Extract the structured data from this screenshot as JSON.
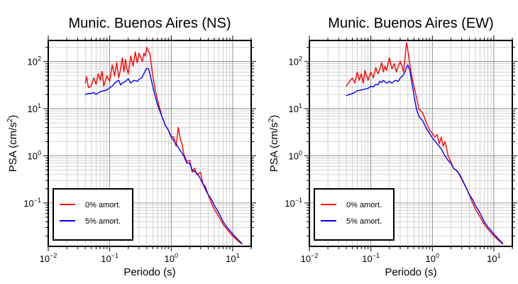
{
  "chart_data": [
    {
      "type": "line",
      "title": "Munic. Buenos Aires (NS)",
      "xlabel": "Periodo (s)",
      "ylabel_main": "PSA (cm/s",
      "ylabel_sup": "2",
      "ylabel_tail": ")",
      "x_scale": "log",
      "y_scale": "log",
      "xlim": [
        0.01,
        20
      ],
      "ylim": [
        0.012,
        280
      ],
      "grid": true,
      "legend_position": "bottom-left",
      "x_ticks": [
        {
          "label_base": "10",
          "label_exp": "−2"
        },
        {
          "label_base": "10",
          "label_exp": "−1"
        },
        {
          "label_base": "10",
          "label_exp": "0"
        },
        {
          "label_base": "10",
          "label_exp": "1"
        }
      ],
      "y_ticks": [
        {
          "label_base": "10",
          "label_exp": "−1"
        },
        {
          "label_base": "10",
          "label_exp": "0"
        },
        {
          "label_base": "10",
          "label_exp": "1"
        },
        {
          "label_base": "10",
          "label_exp": "2"
        }
      ],
      "series": [
        {
          "name": "0% amort.",
          "color": "#ff0000",
          "x": [
            0.04,
            0.042,
            0.045,
            0.05,
            0.055,
            0.06,
            0.065,
            0.07,
            0.075,
            0.08,
            0.09,
            0.1,
            0.11,
            0.12,
            0.13,
            0.14,
            0.15,
            0.16,
            0.17,
            0.18,
            0.19,
            0.2,
            0.22,
            0.24,
            0.26,
            0.28,
            0.3,
            0.32,
            0.34,
            0.36,
            0.38,
            0.4,
            0.42,
            0.45,
            0.5,
            0.55,
            0.6,
            0.7,
            0.8,
            0.9,
            1.0,
            1.1,
            1.2,
            1.3,
            1.4,
            1.5,
            1.6,
            1.7,
            1.8,
            2.0,
            2.2,
            2.4,
            2.6,
            2.8,
            3.0,
            3.3,
            3.6,
            4.0,
            4.5,
            5.0,
            6.0,
            7.0,
            8.0,
            10.0,
            12.0,
            14.0
          ],
          "y": [
            35,
            48,
            28,
            30,
            45,
            33,
            55,
            40,
            62,
            30,
            50,
            38,
            85,
            50,
            95,
            45,
            70,
            120,
            60,
            110,
            70,
            55,
            130,
            80,
            160,
            95,
            150,
            120,
            100,
            150,
            130,
            200,
            170,
            150,
            50,
            25,
            15,
            7,
            4.5,
            3.5,
            2.6,
            2.5,
            1.6,
            4,
            2.3,
            1.8,
            1.1,
            0.9,
            0.75,
            0.8,
            0.45,
            0.55,
            0.4,
            0.42,
            0.45,
            0.25,
            0.22,
            0.15,
            0.1,
            0.075,
            0.05,
            0.035,
            0.028,
            0.02,
            0.016,
            0.0135
          ]
        },
        {
          "name": "5% amort.",
          "color": "#0000ff",
          "x": [
            0.04,
            0.045,
            0.05,
            0.055,
            0.06,
            0.07,
            0.08,
            0.09,
            0.1,
            0.11,
            0.12,
            0.13,
            0.14,
            0.15,
            0.16,
            0.18,
            0.2,
            0.22,
            0.25,
            0.28,
            0.3,
            0.33,
            0.36,
            0.38,
            0.4,
            0.43,
            0.45,
            0.5,
            0.55,
            0.6,
            0.7,
            0.8,
            0.9,
            1.0,
            1.2,
            1.4,
            1.6,
            1.8,
            2.0,
            2.2,
            2.5,
            2.8,
            3.0,
            3.5,
            4.0,
            4.5,
            5.0,
            6.0,
            7.0,
            8.0,
            10.0,
            12.0,
            14.0
          ],
          "y": [
            20,
            21,
            21,
            22,
            20,
            23,
            24,
            25,
            28,
            30,
            35,
            38,
            40,
            32,
            35,
            38,
            43,
            35,
            40,
            38,
            42,
            45,
            55,
            65,
            72,
            70,
            55,
            30,
            18,
            12,
            7,
            4.5,
            3.5,
            2.5,
            1.8,
            1.3,
            1.0,
            0.7,
            0.7,
            0.5,
            0.45,
            0.38,
            0.32,
            0.21,
            0.15,
            0.12,
            0.09,
            0.06,
            0.04,
            0.031,
            0.022,
            0.017,
            0.014
          ]
        }
      ]
    },
    {
      "type": "line",
      "title": "Munic. Buenos Aires (EW)",
      "xlabel": "Periodo (s)",
      "ylabel_main": "PSA (cm/s",
      "ylabel_sup": "2",
      "ylabel_tail": ")",
      "x_scale": "log",
      "y_scale": "log",
      "xlim": [
        0.01,
        20
      ],
      "ylim": [
        0.012,
        280
      ],
      "grid": true,
      "legend_position": "bottom-left",
      "x_ticks": [
        {
          "label_base": "10",
          "label_exp": "−2"
        },
        {
          "label_base": "10",
          "label_exp": "−1"
        },
        {
          "label_base": "10",
          "label_exp": "0"
        },
        {
          "label_base": "10",
          "label_exp": "1"
        }
      ],
      "y_ticks": [
        {
          "label_base": "10",
          "label_exp": "−1"
        },
        {
          "label_base": "10",
          "label_exp": "0"
        },
        {
          "label_base": "10",
          "label_exp": "1"
        },
        {
          "label_base": "10",
          "label_exp": "2"
        }
      ],
      "series": [
        {
          "name": "0% amort.",
          "color": "#ff0000",
          "x": [
            0.04,
            0.045,
            0.05,
            0.055,
            0.06,
            0.065,
            0.07,
            0.075,
            0.08,
            0.09,
            0.1,
            0.11,
            0.12,
            0.13,
            0.14,
            0.15,
            0.16,
            0.17,
            0.18,
            0.2,
            0.22,
            0.24,
            0.26,
            0.28,
            0.3,
            0.32,
            0.34,
            0.36,
            0.38,
            0.4,
            0.42,
            0.45,
            0.5,
            0.55,
            0.6,
            0.7,
            0.8,
            0.9,
            1.0,
            1.1,
            1.2,
            1.3,
            1.4,
            1.5,
            1.6,
            1.7,
            1.8,
            2.0,
            2.2,
            2.4,
            2.6,
            2.8,
            3.0,
            3.3,
            3.6,
            4.0,
            4.5,
            5.0,
            6.0,
            7.0,
            8.0,
            10.0,
            12.0,
            14.0
          ],
          "y": [
            30,
            38,
            45,
            35,
            60,
            40,
            55,
            35,
            65,
            40,
            60,
            45,
            75,
            55,
            70,
            95,
            60,
            80,
            65,
            120,
            70,
            90,
            60,
            80,
            100,
            80,
            60,
            120,
            250,
            170,
            110,
            60,
            30,
            18,
            10,
            8,
            5,
            3.5,
            3.0,
            2.5,
            2.8,
            1.8,
            2.5,
            1.6,
            2.0,
            1.5,
            1.0,
            0.75,
            0.55,
            0.5,
            0.45,
            0.38,
            0.32,
            0.25,
            0.2,
            0.15,
            0.1,
            0.075,
            0.05,
            0.035,
            0.028,
            0.02,
            0.016,
            0.0135
          ]
        },
        {
          "name": "5% amort.",
          "color": "#0000ff",
          "x": [
            0.04,
            0.045,
            0.05,
            0.055,
            0.06,
            0.07,
            0.08,
            0.09,
            0.1,
            0.11,
            0.12,
            0.13,
            0.14,
            0.15,
            0.16,
            0.18,
            0.2,
            0.22,
            0.25,
            0.28,
            0.3,
            0.33,
            0.36,
            0.38,
            0.4,
            0.43,
            0.45,
            0.5,
            0.55,
            0.6,
            0.7,
            0.8,
            0.9,
            1.0,
            1.2,
            1.4,
            1.6,
            1.8,
            2.0,
            2.2,
            2.5,
            2.8,
            3.0,
            3.5,
            4.0,
            4.5,
            5.0,
            6.0,
            7.0,
            8.0,
            10.0,
            12.0,
            14.0
          ],
          "y": [
            19,
            20,
            21,
            22,
            24,
            25,
            26,
            27,
            30,
            29,
            33,
            32,
            38,
            36,
            40,
            35,
            38,
            35,
            40,
            38,
            45,
            50,
            60,
            75,
            85,
            65,
            45,
            20,
            10,
            7,
            5.5,
            3.8,
            3.0,
            2.4,
            1.8,
            1.4,
            1.0,
            0.8,
            0.7,
            0.55,
            0.48,
            0.4,
            0.33,
            0.22,
            0.15,
            0.12,
            0.09,
            0.06,
            0.04,
            0.031,
            0.022,
            0.017,
            0.014
          ]
        }
      ]
    }
  ]
}
